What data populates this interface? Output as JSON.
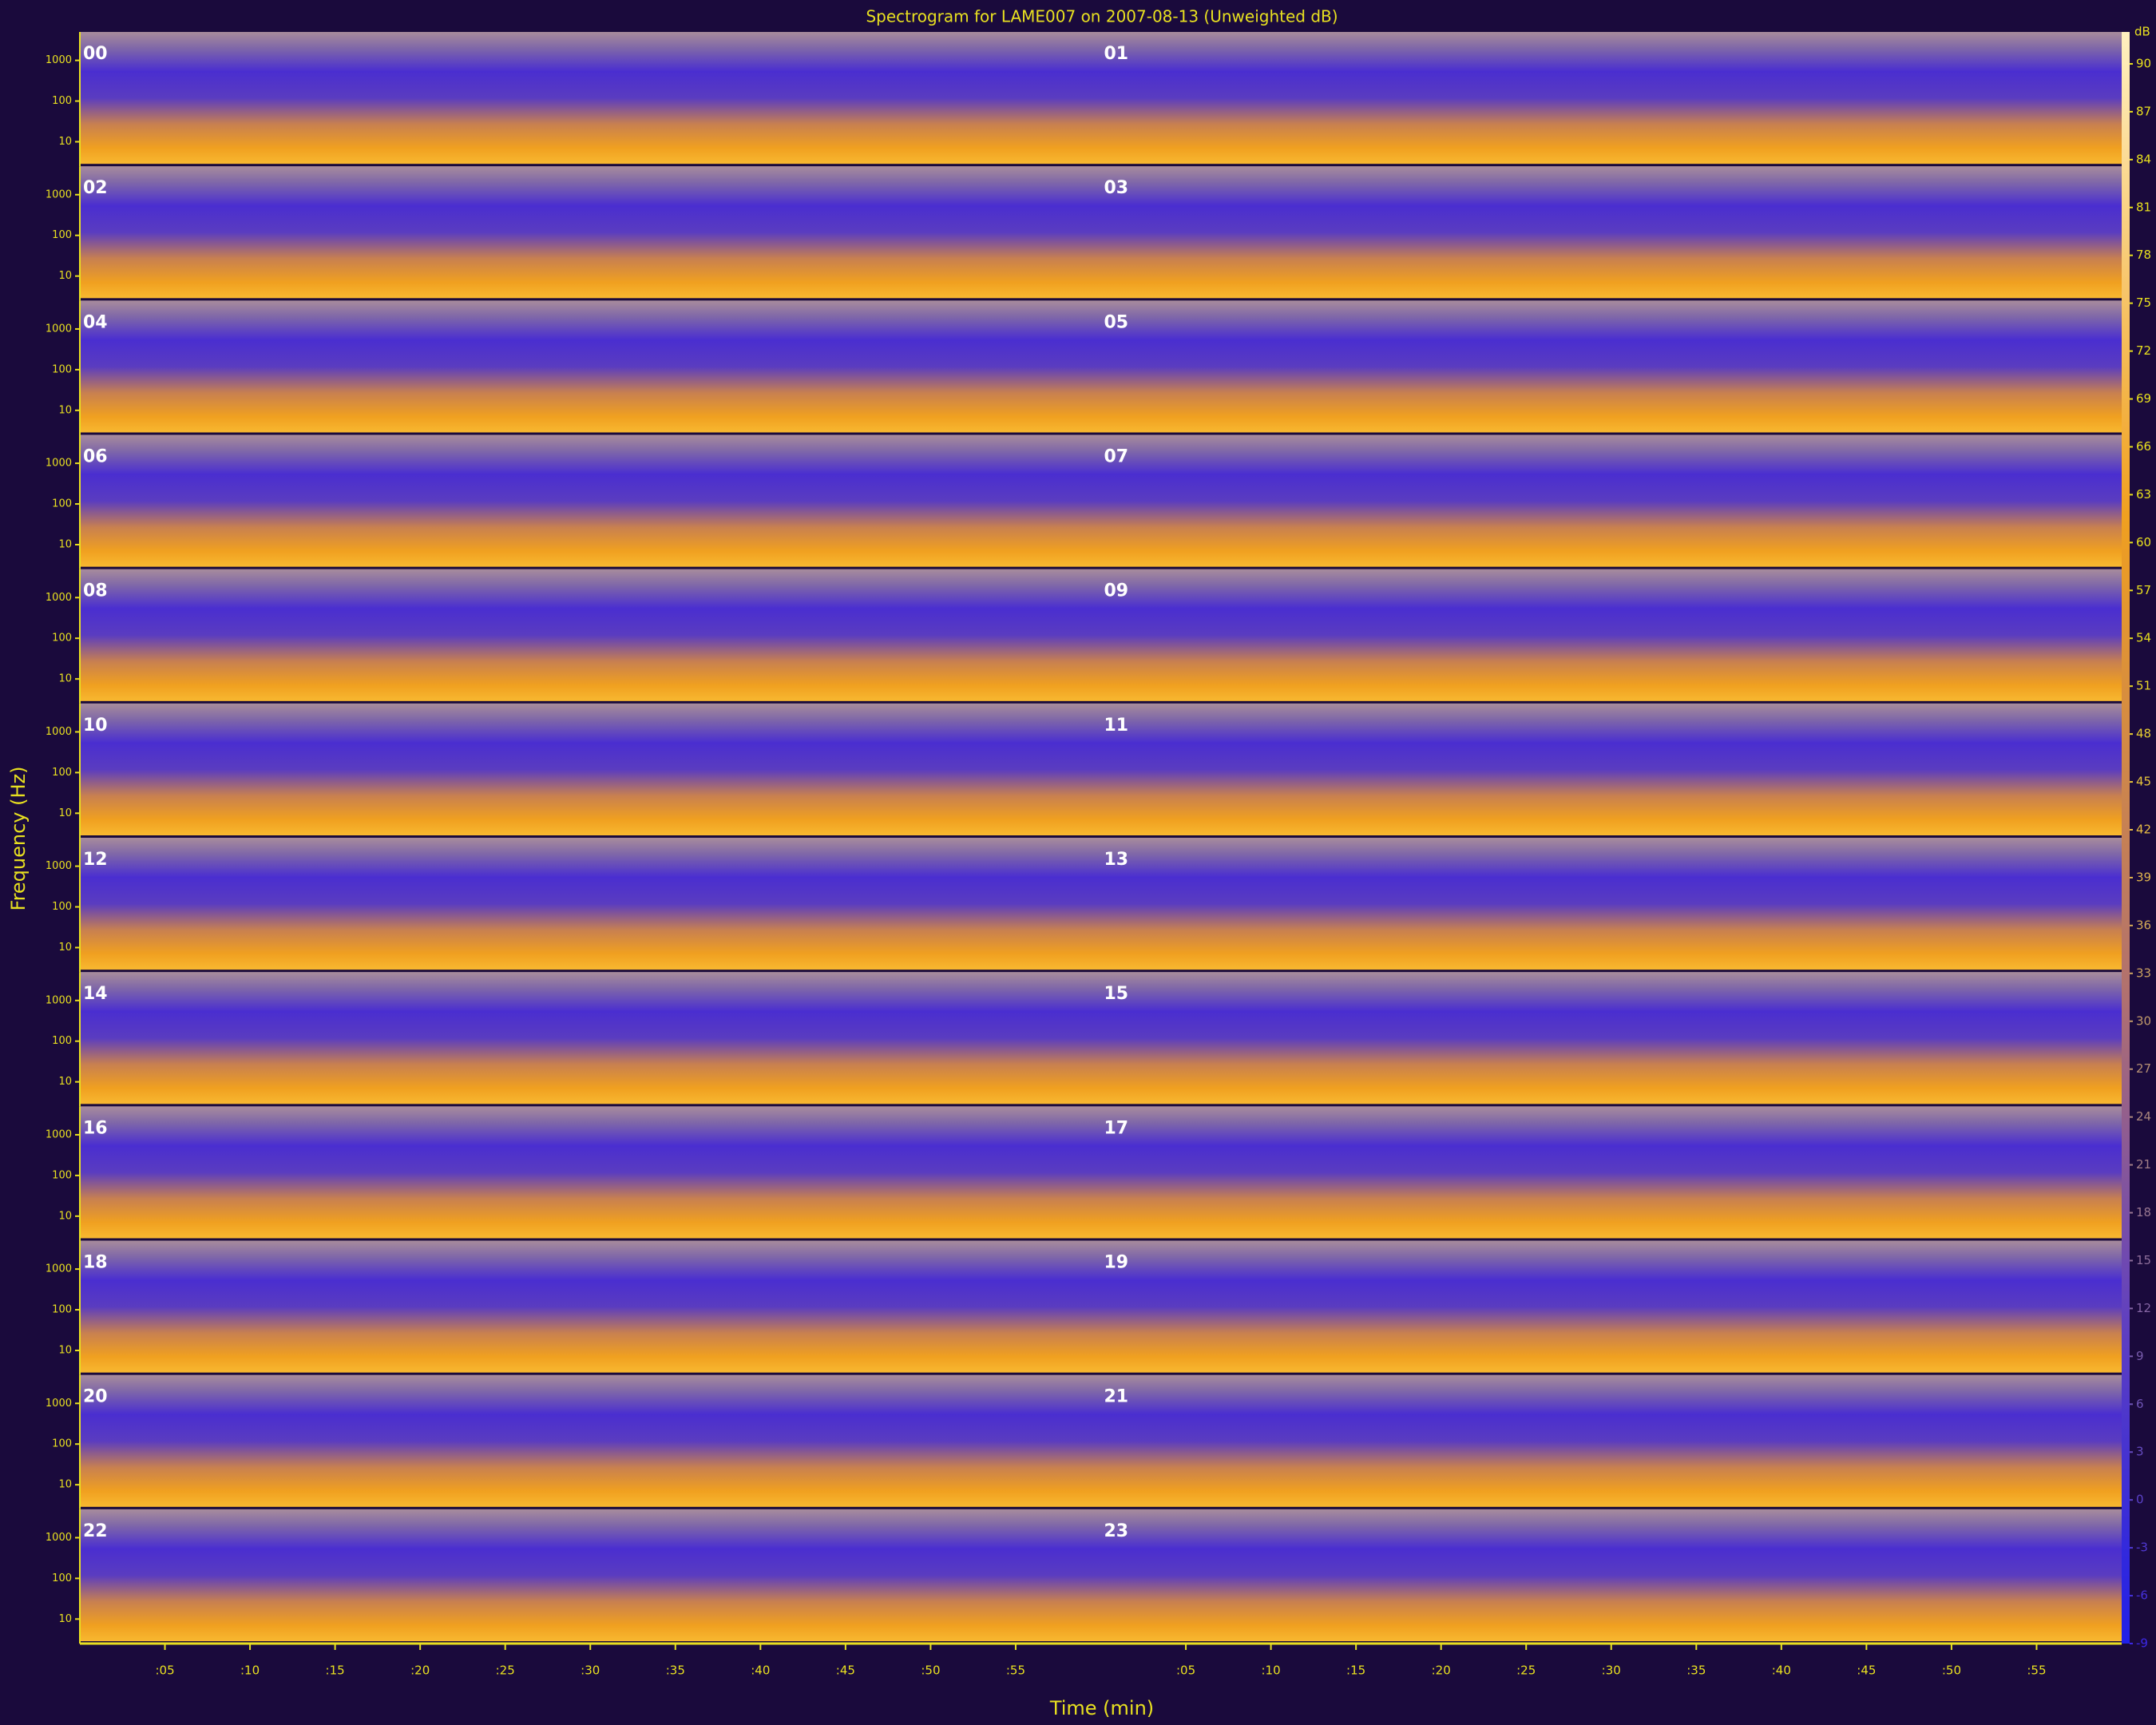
{
  "chart_data": {
    "type": "spectrogram",
    "title": "Spectrogram for LAME007 on 2007-08-13 (Unweighted dB)",
    "xlabel": "Time (min)",
    "ylabel": "Frequency (Hz)",
    "panels": [
      "00",
      "01",
      "02",
      "03",
      "04",
      "05",
      "06",
      "07",
      "08",
      "09",
      "10",
      "11",
      "12",
      "13",
      "14",
      "15",
      "16",
      "17",
      "18",
      "19",
      "20",
      "21",
      "22",
      "23"
    ],
    "xlim": [
      0,
      60
    ],
    "xticks": [
      {
        "value": 5,
        "label": ":05"
      },
      {
        "value": 10,
        "label": ":10"
      },
      {
        "value": 15,
        "label": ":15"
      },
      {
        "value": 20,
        "label": ":20"
      },
      {
        "value": 25,
        "label": ":25"
      },
      {
        "value": 30,
        "label": ":30"
      },
      {
        "value": 35,
        "label": ":35"
      },
      {
        "value": 40,
        "label": ":40"
      },
      {
        "value": 45,
        "label": ":45"
      },
      {
        "value": 50,
        "label": ":50"
      },
      {
        "value": 55,
        "label": ":55"
      }
    ],
    "yscale": "log",
    "ylim": [
      2.5,
      5000
    ],
    "yticks": [
      10,
      100,
      1000
    ],
    "colorbar": {
      "label": "dB",
      "lim": [
        -9,
        92
      ],
      "ticks": [
        -9,
        -6,
        -3,
        0,
        3,
        6,
        9,
        12,
        15,
        18,
        21,
        24,
        27,
        30,
        33,
        36,
        39,
        42,
        45,
        48,
        51,
        54,
        57,
        60,
        63,
        66,
        69,
        72,
        75,
        78,
        81,
        84,
        87,
        90
      ]
    }
  }
}
